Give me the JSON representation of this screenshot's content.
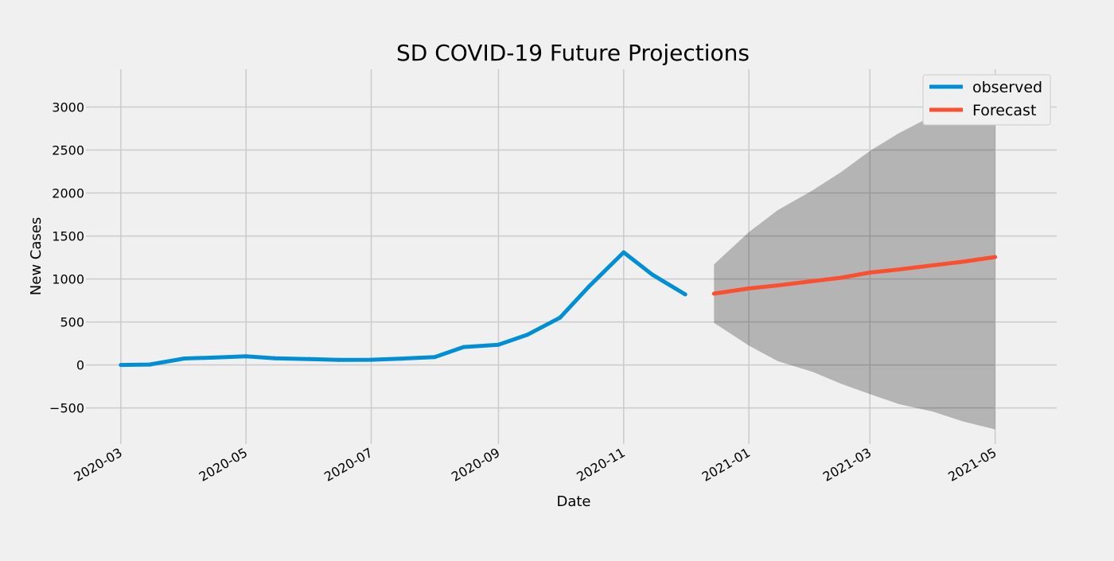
{
  "chart_data": {
    "type": "line",
    "title": "SD COVID-19 Future Projections",
    "xlabel": "Date",
    "ylabel": "New Cases",
    "x_tick_labels": [
      "2020-03",
      "2020-05",
      "2020-07",
      "2020-09",
      "2020-11",
      "2021-01",
      "2021-03",
      "2021-05"
    ],
    "y_ticks": [
      -500,
      0,
      500,
      1000,
      1500,
      2000,
      2500,
      3000
    ],
    "y_tick_labels": [
      "−500",
      "0",
      "500",
      "1000",
      "1500",
      "2000",
      "2500",
      "3000"
    ],
    "xlim": [
      "2020-02-13",
      "2021-05-31"
    ],
    "ylim": [
      -920,
      3440
    ],
    "grid": true,
    "legend_position": "top-right",
    "series": [
      {
        "name": "observed",
        "color": "#008fd5",
        "x": [
          "2020-03-01",
          "2020-03-15",
          "2020-04-01",
          "2020-04-15",
          "2020-05-01",
          "2020-05-15",
          "2020-06-01",
          "2020-06-15",
          "2020-07-01",
          "2020-07-15",
          "2020-08-01",
          "2020-08-15",
          "2020-09-01",
          "2020-09-15",
          "2020-10-01",
          "2020-10-15",
          "2020-11-01",
          "2020-11-15",
          "2020-12-01"
        ],
        "y": [
          0,
          5,
          75,
          85,
          100,
          78,
          68,
          58,
          60,
          72,
          92,
          208,
          235,
          350,
          550,
          910,
          1310,
          1050,
          820
        ]
      },
      {
        "name": "Forecast",
        "color": "#fc4f30",
        "x": [
          "2020-12-15",
          "2021-01-01",
          "2021-01-15",
          "2021-02-01",
          "2021-02-15",
          "2021-03-01",
          "2021-03-15",
          "2021-04-01",
          "2021-04-15",
          "2021-05-01"
        ],
        "y": [
          830,
          890,
          925,
          975,
          1015,
          1075,
          1110,
          1160,
          1200,
          1255
        ],
        "lower": [
          490,
          225,
          45,
          -80,
          -220,
          -340,
          -455,
          -545,
          -655,
          -750
        ],
        "upper": [
          1170,
          1545,
          1800,
          2030,
          2245,
          2490,
          2695,
          2905,
          3095,
          3300
        ]
      }
    ]
  }
}
